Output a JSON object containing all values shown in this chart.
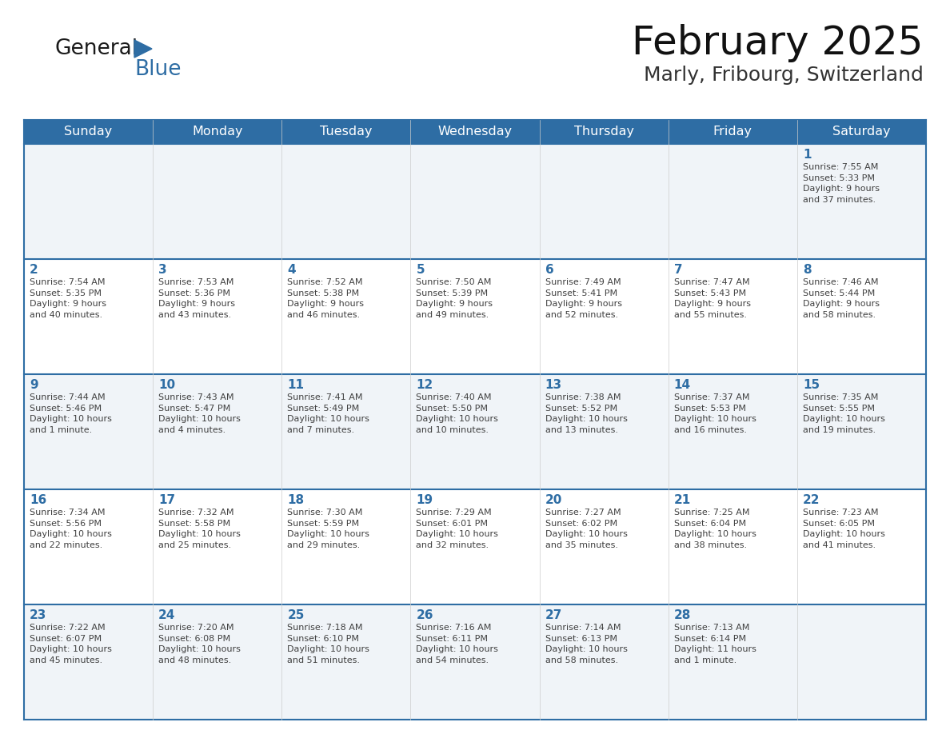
{
  "title": "February 2025",
  "subtitle": "Marly, Fribourg, Switzerland",
  "days_of_week": [
    "Sunday",
    "Monday",
    "Tuesday",
    "Wednesday",
    "Thursday",
    "Friday",
    "Saturday"
  ],
  "header_bg": "#2E6DA4",
  "header_text": "#FFFFFF",
  "cell_bg": "#FFFFFF",
  "row1_bg": "#F0F4F8",
  "day_num_color": "#2E6DA4",
  "text_color": "#404040",
  "border_color": "#2E6DA4",
  "sep_line_color": "#2E6DA4",
  "logo_general_color": "#1a1a1a",
  "logo_blue_color": "#2E6DA4",
  "calendar_data": [
    [
      {
        "day": null,
        "info": null
      },
      {
        "day": null,
        "info": null
      },
      {
        "day": null,
        "info": null
      },
      {
        "day": null,
        "info": null
      },
      {
        "day": null,
        "info": null
      },
      {
        "day": null,
        "info": null
      },
      {
        "day": 1,
        "info": "Sunrise: 7:55 AM\nSunset: 5:33 PM\nDaylight: 9 hours\nand 37 minutes."
      }
    ],
    [
      {
        "day": 2,
        "info": "Sunrise: 7:54 AM\nSunset: 5:35 PM\nDaylight: 9 hours\nand 40 minutes."
      },
      {
        "day": 3,
        "info": "Sunrise: 7:53 AM\nSunset: 5:36 PM\nDaylight: 9 hours\nand 43 minutes."
      },
      {
        "day": 4,
        "info": "Sunrise: 7:52 AM\nSunset: 5:38 PM\nDaylight: 9 hours\nand 46 minutes."
      },
      {
        "day": 5,
        "info": "Sunrise: 7:50 AM\nSunset: 5:39 PM\nDaylight: 9 hours\nand 49 minutes."
      },
      {
        "day": 6,
        "info": "Sunrise: 7:49 AM\nSunset: 5:41 PM\nDaylight: 9 hours\nand 52 minutes."
      },
      {
        "day": 7,
        "info": "Sunrise: 7:47 AM\nSunset: 5:43 PM\nDaylight: 9 hours\nand 55 minutes."
      },
      {
        "day": 8,
        "info": "Sunrise: 7:46 AM\nSunset: 5:44 PM\nDaylight: 9 hours\nand 58 minutes."
      }
    ],
    [
      {
        "day": 9,
        "info": "Sunrise: 7:44 AM\nSunset: 5:46 PM\nDaylight: 10 hours\nand 1 minute."
      },
      {
        "day": 10,
        "info": "Sunrise: 7:43 AM\nSunset: 5:47 PM\nDaylight: 10 hours\nand 4 minutes."
      },
      {
        "day": 11,
        "info": "Sunrise: 7:41 AM\nSunset: 5:49 PM\nDaylight: 10 hours\nand 7 minutes."
      },
      {
        "day": 12,
        "info": "Sunrise: 7:40 AM\nSunset: 5:50 PM\nDaylight: 10 hours\nand 10 minutes."
      },
      {
        "day": 13,
        "info": "Sunrise: 7:38 AM\nSunset: 5:52 PM\nDaylight: 10 hours\nand 13 minutes."
      },
      {
        "day": 14,
        "info": "Sunrise: 7:37 AM\nSunset: 5:53 PM\nDaylight: 10 hours\nand 16 minutes."
      },
      {
        "day": 15,
        "info": "Sunrise: 7:35 AM\nSunset: 5:55 PM\nDaylight: 10 hours\nand 19 minutes."
      }
    ],
    [
      {
        "day": 16,
        "info": "Sunrise: 7:34 AM\nSunset: 5:56 PM\nDaylight: 10 hours\nand 22 minutes."
      },
      {
        "day": 17,
        "info": "Sunrise: 7:32 AM\nSunset: 5:58 PM\nDaylight: 10 hours\nand 25 minutes."
      },
      {
        "day": 18,
        "info": "Sunrise: 7:30 AM\nSunset: 5:59 PM\nDaylight: 10 hours\nand 29 minutes."
      },
      {
        "day": 19,
        "info": "Sunrise: 7:29 AM\nSunset: 6:01 PM\nDaylight: 10 hours\nand 32 minutes."
      },
      {
        "day": 20,
        "info": "Sunrise: 7:27 AM\nSunset: 6:02 PM\nDaylight: 10 hours\nand 35 minutes."
      },
      {
        "day": 21,
        "info": "Sunrise: 7:25 AM\nSunset: 6:04 PM\nDaylight: 10 hours\nand 38 minutes."
      },
      {
        "day": 22,
        "info": "Sunrise: 7:23 AM\nSunset: 6:05 PM\nDaylight: 10 hours\nand 41 minutes."
      }
    ],
    [
      {
        "day": 23,
        "info": "Sunrise: 7:22 AM\nSunset: 6:07 PM\nDaylight: 10 hours\nand 45 minutes."
      },
      {
        "day": 24,
        "info": "Sunrise: 7:20 AM\nSunset: 6:08 PM\nDaylight: 10 hours\nand 48 minutes."
      },
      {
        "day": 25,
        "info": "Sunrise: 7:18 AM\nSunset: 6:10 PM\nDaylight: 10 hours\nand 51 minutes."
      },
      {
        "day": 26,
        "info": "Sunrise: 7:16 AM\nSunset: 6:11 PM\nDaylight: 10 hours\nand 54 minutes."
      },
      {
        "day": 27,
        "info": "Sunrise: 7:14 AM\nSunset: 6:13 PM\nDaylight: 10 hours\nand 58 minutes."
      },
      {
        "day": 28,
        "info": "Sunrise: 7:13 AM\nSunset: 6:14 PM\nDaylight: 11 hours\nand 1 minute."
      },
      {
        "day": null,
        "info": null
      }
    ]
  ]
}
